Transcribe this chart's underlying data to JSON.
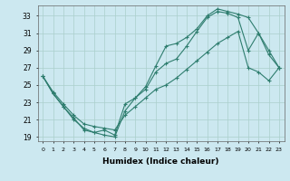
{
  "xlabel": "Humidex (Indice chaleur)",
  "bg_color": "#cce8f0",
  "line_color": "#2e7d6e",
  "grid_color": "#aacfcc",
  "xlim": [
    -0.5,
    23.5
  ],
  "ylim": [
    18.5,
    34.2
  ],
  "xticks": [
    0,
    1,
    2,
    3,
    4,
    5,
    6,
    7,
    8,
    9,
    10,
    11,
    12,
    13,
    14,
    15,
    16,
    17,
    18,
    19,
    20,
    21,
    22,
    23
  ],
  "yticks": [
    19,
    21,
    23,
    25,
    27,
    29,
    31,
    33
  ],
  "line1_x": [
    0,
    1,
    2,
    3,
    4,
    5,
    6,
    7,
    8,
    9,
    10,
    11,
    12,
    13,
    14,
    15,
    16,
    17,
    18,
    19,
    20,
    21,
    22,
    23
  ],
  "line1_y": [
    26.0,
    24.0,
    22.5,
    21.0,
    20.0,
    19.5,
    19.2,
    19.0,
    22.0,
    23.5,
    24.5,
    26.5,
    27.5,
    28.0,
    29.5,
    31.2,
    32.8,
    33.5,
    33.3,
    32.8,
    29.0,
    31.0,
    28.5,
    27.0
  ],
  "line2_x": [
    0,
    1,
    2,
    3,
    4,
    5,
    6,
    7,
    8,
    9,
    10,
    11,
    12,
    13,
    14,
    15,
    16,
    17,
    18,
    19,
    20,
    21,
    22,
    23
  ],
  "line2_y": [
    26.0,
    24.0,
    22.5,
    21.2,
    19.8,
    19.5,
    19.8,
    19.2,
    22.8,
    23.5,
    24.8,
    27.2,
    29.5,
    29.8,
    30.5,
    31.5,
    33.0,
    33.8,
    33.5,
    33.2,
    32.8,
    31.0,
    29.0,
    27.0
  ],
  "line3_x": [
    0,
    1,
    2,
    3,
    4,
    5,
    6,
    7,
    8,
    9,
    10,
    11,
    12,
    13,
    14,
    15,
    16,
    17,
    18,
    19,
    20,
    21,
    22,
    23
  ],
  "line3_y": [
    26.0,
    24.2,
    22.8,
    21.5,
    20.5,
    20.2,
    20.0,
    19.8,
    21.5,
    22.5,
    23.5,
    24.5,
    25.0,
    25.8,
    26.8,
    27.8,
    28.8,
    29.8,
    30.5,
    31.2,
    27.0,
    26.5,
    25.5,
    27.0
  ]
}
